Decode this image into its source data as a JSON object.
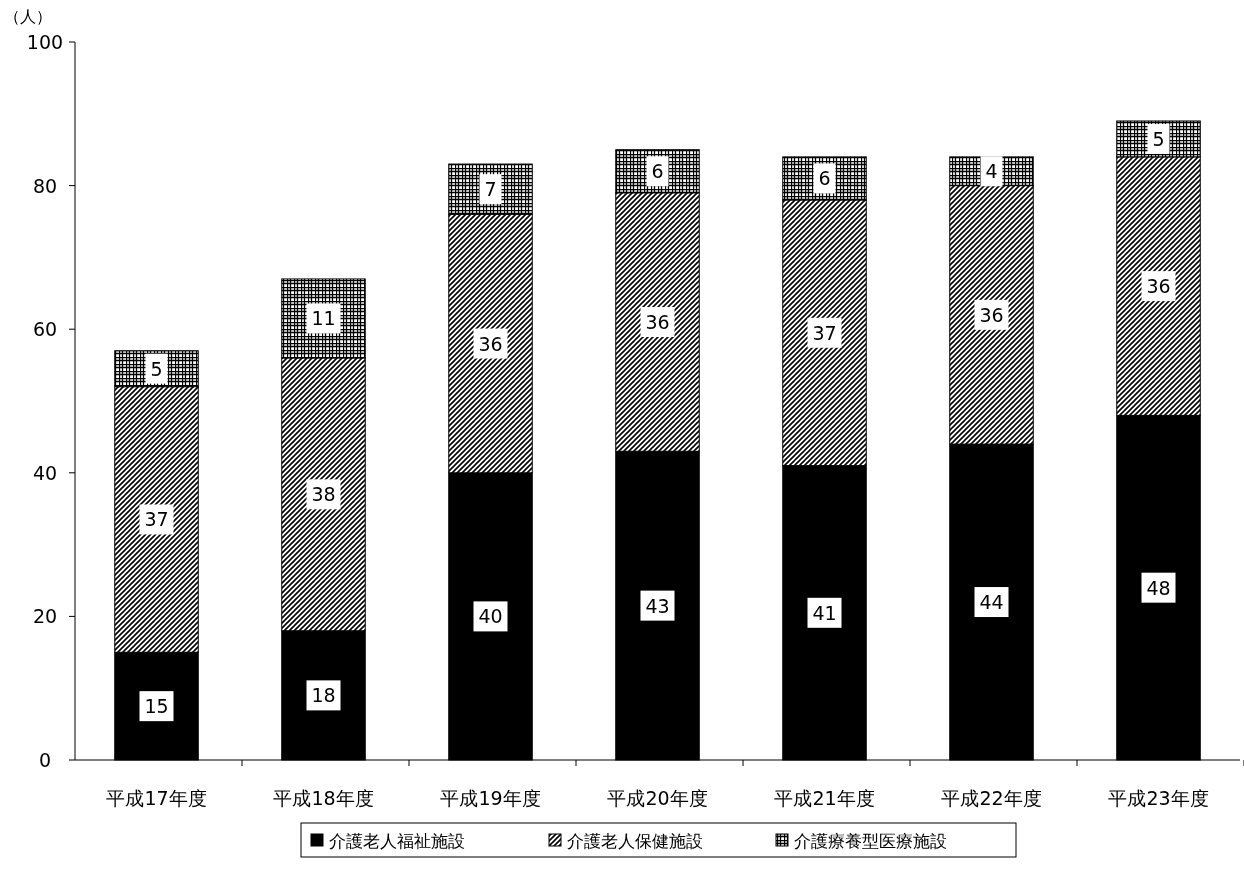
{
  "chart_data": {
    "type": "bar",
    "stacked": true,
    "data_labels": true,
    "legend": "bottom",
    "grid": false,
    "ylabel": "（人）",
    "ylim": [
      0,
      100
    ],
    "yticks": [
      0,
      20,
      40,
      60,
      80,
      100
    ],
    "categories": [
      "平成17年度",
      "平成18年度",
      "平成19年度",
      "平成20年度",
      "平成21年度",
      "平成22年度",
      "平成23年度"
    ],
    "series": [
      {
        "name": "介護老人福祉施設",
        "color": "#000000",
        "values": [
          15,
          18,
          40,
          43,
          41,
          44,
          48
        ]
      },
      {
        "name": "介護老人保健施設",
        "color": "#000000",
        "values": [
          37,
          38,
          36,
          36,
          37,
          36,
          36
        ]
      },
      {
        "name": "介護療養型医療施設",
        "color": "#000000",
        "values": [
          5,
          11,
          7,
          6,
          6,
          4,
          5
        ]
      }
    ]
  }
}
